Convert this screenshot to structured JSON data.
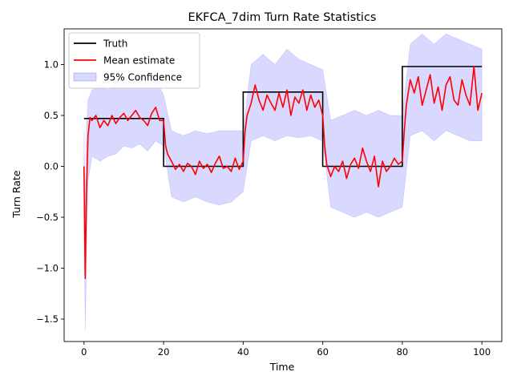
{
  "chart_data": {
    "type": "line",
    "title": "EKFCA_7dim Turn Rate Statistics",
    "xlabel": "Time",
    "ylabel": "Turn Rate",
    "xlim": [
      -5,
      105
    ],
    "ylim": [
      -1.72,
      1.35
    ],
    "x_ticks": [
      0,
      20,
      40,
      60,
      80,
      100
    ],
    "x_tick_labels": [
      "0",
      "20",
      "40",
      "60",
      "80",
      "100"
    ],
    "y_ticks": [
      -1.5,
      -1.0,
      -0.5,
      0.0,
      0.5,
      1.0
    ],
    "y_tick_labels": [
      "−1.5",
      "−1.0",
      "−0.5",
      "0.0",
      "0.5",
      "1.0"
    ],
    "grid": false,
    "legend_position": "top-left",
    "series": [
      {
        "name": "Truth",
        "color": "#000000",
        "style": "step",
        "x": [
          0,
          20,
          20,
          40,
          40,
          60,
          60,
          80,
          80,
          100
        ],
        "y": [
          0.47,
          0.47,
          0.0,
          0.0,
          0.73,
          0.73,
          0.0,
          0.0,
          0.98,
          0.98
        ]
      },
      {
        "name": "Mean estimate",
        "color": "#ff0000",
        "style": "line",
        "x": [
          0,
          0.3,
          0.6,
          1,
          1.5,
          2,
          3,
          4,
          5,
          6,
          7,
          8,
          9,
          10,
          11,
          12,
          13,
          14,
          15,
          16,
          17,
          18,
          19,
          20,
          20.5,
          21,
          22,
          23,
          24,
          25,
          26,
          27,
          28,
          29,
          30,
          31,
          32,
          33,
          34,
          35,
          36,
          37,
          38,
          39,
          40,
          40.5,
          41,
          42,
          43,
          44,
          45,
          46,
          47,
          48,
          49,
          50,
          51,
          52,
          53,
          54,
          55,
          56,
          57,
          58,
          59,
          60,
          60.5,
          61,
          62,
          63,
          64,
          65,
          66,
          67,
          68,
          69,
          70,
          71,
          72,
          73,
          74,
          75,
          76,
          77,
          78,
          79,
          80,
          80.5,
          81,
          82,
          83,
          84,
          85,
          86,
          87,
          88,
          89,
          90,
          91,
          92,
          93,
          94,
          95,
          96,
          97,
          98,
          99,
          100
        ],
        "y": [
          0.0,
          -1.1,
          -0.3,
          0.3,
          0.48,
          0.45,
          0.5,
          0.38,
          0.45,
          0.4,
          0.5,
          0.42,
          0.48,
          0.52,
          0.45,
          0.5,
          0.55,
          0.48,
          0.45,
          0.4,
          0.52,
          0.58,
          0.45,
          0.45,
          0.2,
          0.12,
          0.05,
          -0.03,
          0.02,
          -0.05,
          0.03,
          0.0,
          -0.08,
          0.05,
          -0.02,
          0.02,
          -0.06,
          0.03,
          0.1,
          -0.02,
          0.0,
          -0.05,
          0.08,
          -0.03,
          0.05,
          0.35,
          0.5,
          0.62,
          0.8,
          0.65,
          0.55,
          0.7,
          0.62,
          0.55,
          0.72,
          0.58,
          0.75,
          0.5,
          0.68,
          0.62,
          0.75,
          0.55,
          0.7,
          0.58,
          0.65,
          0.5,
          0.2,
          0.02,
          -0.1,
          0.0,
          -0.05,
          0.05,
          -0.12,
          0.02,
          0.08,
          -0.02,
          0.18,
          0.05,
          -0.05,
          0.1,
          -0.2,
          0.05,
          -0.05,
          0.0,
          0.08,
          0.02,
          0.05,
          0.35,
          0.6,
          0.85,
          0.72,
          0.88,
          0.6,
          0.75,
          0.9,
          0.62,
          0.78,
          0.55,
          0.8,
          0.88,
          0.65,
          0.6,
          0.85,
          0.7,
          0.6,
          0.98,
          0.55,
          0.72
        ]
      },
      {
        "name": "95% Confidence",
        "color": "#0000ff",
        "fill_opacity": 0.15,
        "style": "band",
        "x": [
          0,
          0.3,
          0.6,
          1,
          2,
          4,
          6,
          8,
          10,
          12,
          14,
          16,
          18,
          20,
          22,
          25,
          28,
          31,
          34,
          37,
          40,
          42,
          45,
          48,
          51,
          54,
          57,
          60,
          62,
          65,
          68,
          71,
          74,
          77,
          80,
          82,
          85,
          88,
          91,
          94,
          97,
          100
        ],
        "lower": [
          -0.35,
          -1.62,
          -1.0,
          -0.15,
          0.1,
          0.05,
          0.1,
          0.12,
          0.2,
          0.18,
          0.22,
          0.15,
          0.25,
          0.2,
          -0.3,
          -0.35,
          -0.3,
          -0.35,
          -0.38,
          -0.35,
          -0.25,
          0.25,
          0.3,
          0.25,
          0.3,
          0.28,
          0.3,
          0.25,
          -0.4,
          -0.45,
          -0.5,
          -0.45,
          -0.5,
          -0.45,
          -0.4,
          0.3,
          0.35,
          0.25,
          0.35,
          0.3,
          0.25,
          0.25
        ],
        "upper": [
          0.35,
          -0.5,
          0.35,
          0.65,
          0.75,
          0.8,
          0.75,
          0.85,
          0.85,
          0.8,
          0.9,
          0.85,
          0.85,
          0.7,
          0.35,
          0.3,
          0.35,
          0.32,
          0.35,
          0.35,
          0.35,
          1.0,
          1.1,
          1.0,
          1.15,
          1.05,
          1.0,
          0.95,
          0.45,
          0.5,
          0.55,
          0.5,
          0.55,
          0.5,
          0.5,
          1.2,
          1.3,
          1.2,
          1.3,
          1.25,
          1.2,
          1.15
        ]
      }
    ]
  }
}
